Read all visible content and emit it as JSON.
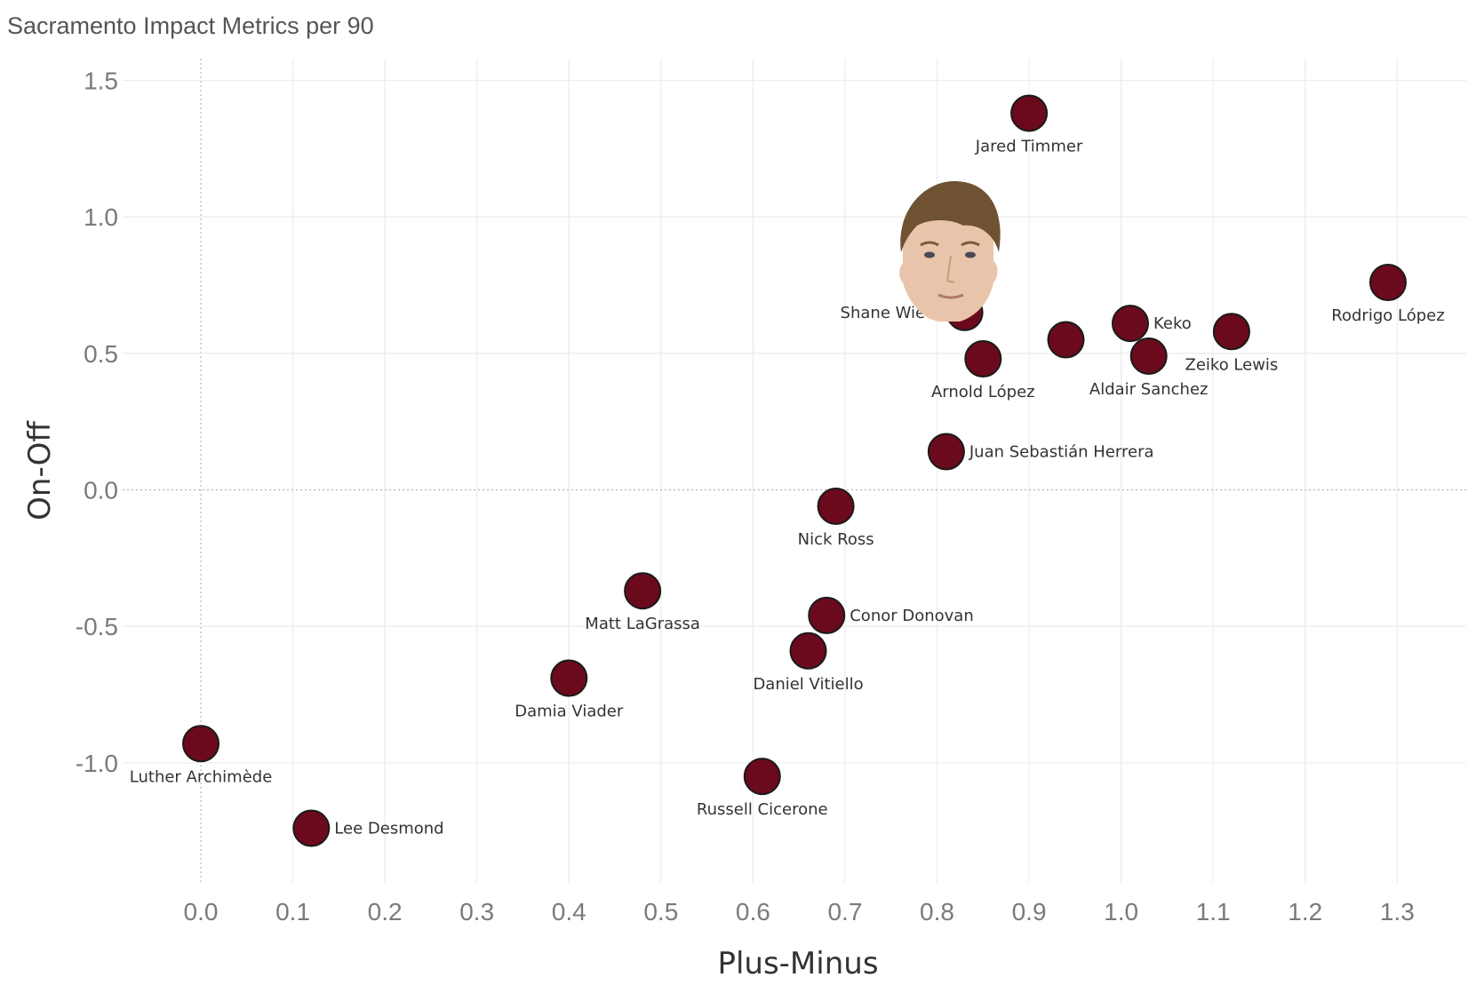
{
  "chart_data": {
    "type": "scatter",
    "title": "Sacramento Impact Metrics per 90",
    "xlabel": "Plus-Minus",
    "ylabel": "On-Off",
    "xlim": [
      -0.085,
      1.375
    ],
    "ylim": [
      -1.44,
      1.58
    ],
    "xticks": [
      "0.0",
      "0.1",
      "0.2",
      "0.3",
      "0.4",
      "0.5",
      "0.6",
      "0.7",
      "0.8",
      "0.9",
      "1.0",
      "1.1",
      "1.2",
      "1.3"
    ],
    "yticks": [
      "1.5",
      "1.0",
      "0.5",
      "0.0",
      "-0.5",
      "-1.0"
    ],
    "grid": true,
    "marker_color": "#6b0a1c",
    "highlighted_player": "Shane Wiedt",
    "points": [
      {
        "label": "Jared Timmer",
        "x": 0.9,
        "y": 1.38,
        "label_pos": "below"
      },
      {
        "label": "Rodrigo López",
        "x": 1.29,
        "y": 0.76,
        "label_pos": "below"
      },
      {
        "label": "Shane Wiedt",
        "x": 0.83,
        "y": 0.65,
        "label_pos": "left"
      },
      {
        "label": "Keko",
        "x": 1.01,
        "y": 0.61,
        "label_pos": "right"
      },
      {
        "label": "Zeiko Lewis",
        "x": 1.12,
        "y": 0.58,
        "label_pos": "below"
      },
      {
        "label": "",
        "x": 0.94,
        "y": 0.55,
        "label_pos": "none"
      },
      {
        "label": "Aldair Sanchez",
        "x": 1.03,
        "y": 0.49,
        "label_pos": "below"
      },
      {
        "label": "Arnold López",
        "x": 0.85,
        "y": 0.48,
        "label_pos": "below"
      },
      {
        "label": "Juan Sebastián Herrera",
        "x": 0.81,
        "y": 0.14,
        "label_pos": "right"
      },
      {
        "label": "Nick Ross",
        "x": 0.69,
        "y": -0.06,
        "label_pos": "below"
      },
      {
        "label": "Matt LaGrassa",
        "x": 0.48,
        "y": -0.37,
        "label_pos": "below"
      },
      {
        "label": "Conor Donovan",
        "x": 0.68,
        "y": -0.46,
        "label_pos": "right"
      },
      {
        "label": "Daniel Vitiello",
        "x": 0.66,
        "y": -0.59,
        "label_pos": "below"
      },
      {
        "label": "Damia Viader",
        "x": 0.4,
        "y": -0.69,
        "label_pos": "below"
      },
      {
        "label": "Luther Archimède",
        "x": 0.0,
        "y": -0.93,
        "label_pos": "below"
      },
      {
        "label": "Russell Cicerone",
        "x": 0.61,
        "y": -1.05,
        "label_pos": "below"
      },
      {
        "label": "Lee Desmond",
        "x": 0.12,
        "y": -1.24,
        "label_pos": "right"
      }
    ]
  }
}
